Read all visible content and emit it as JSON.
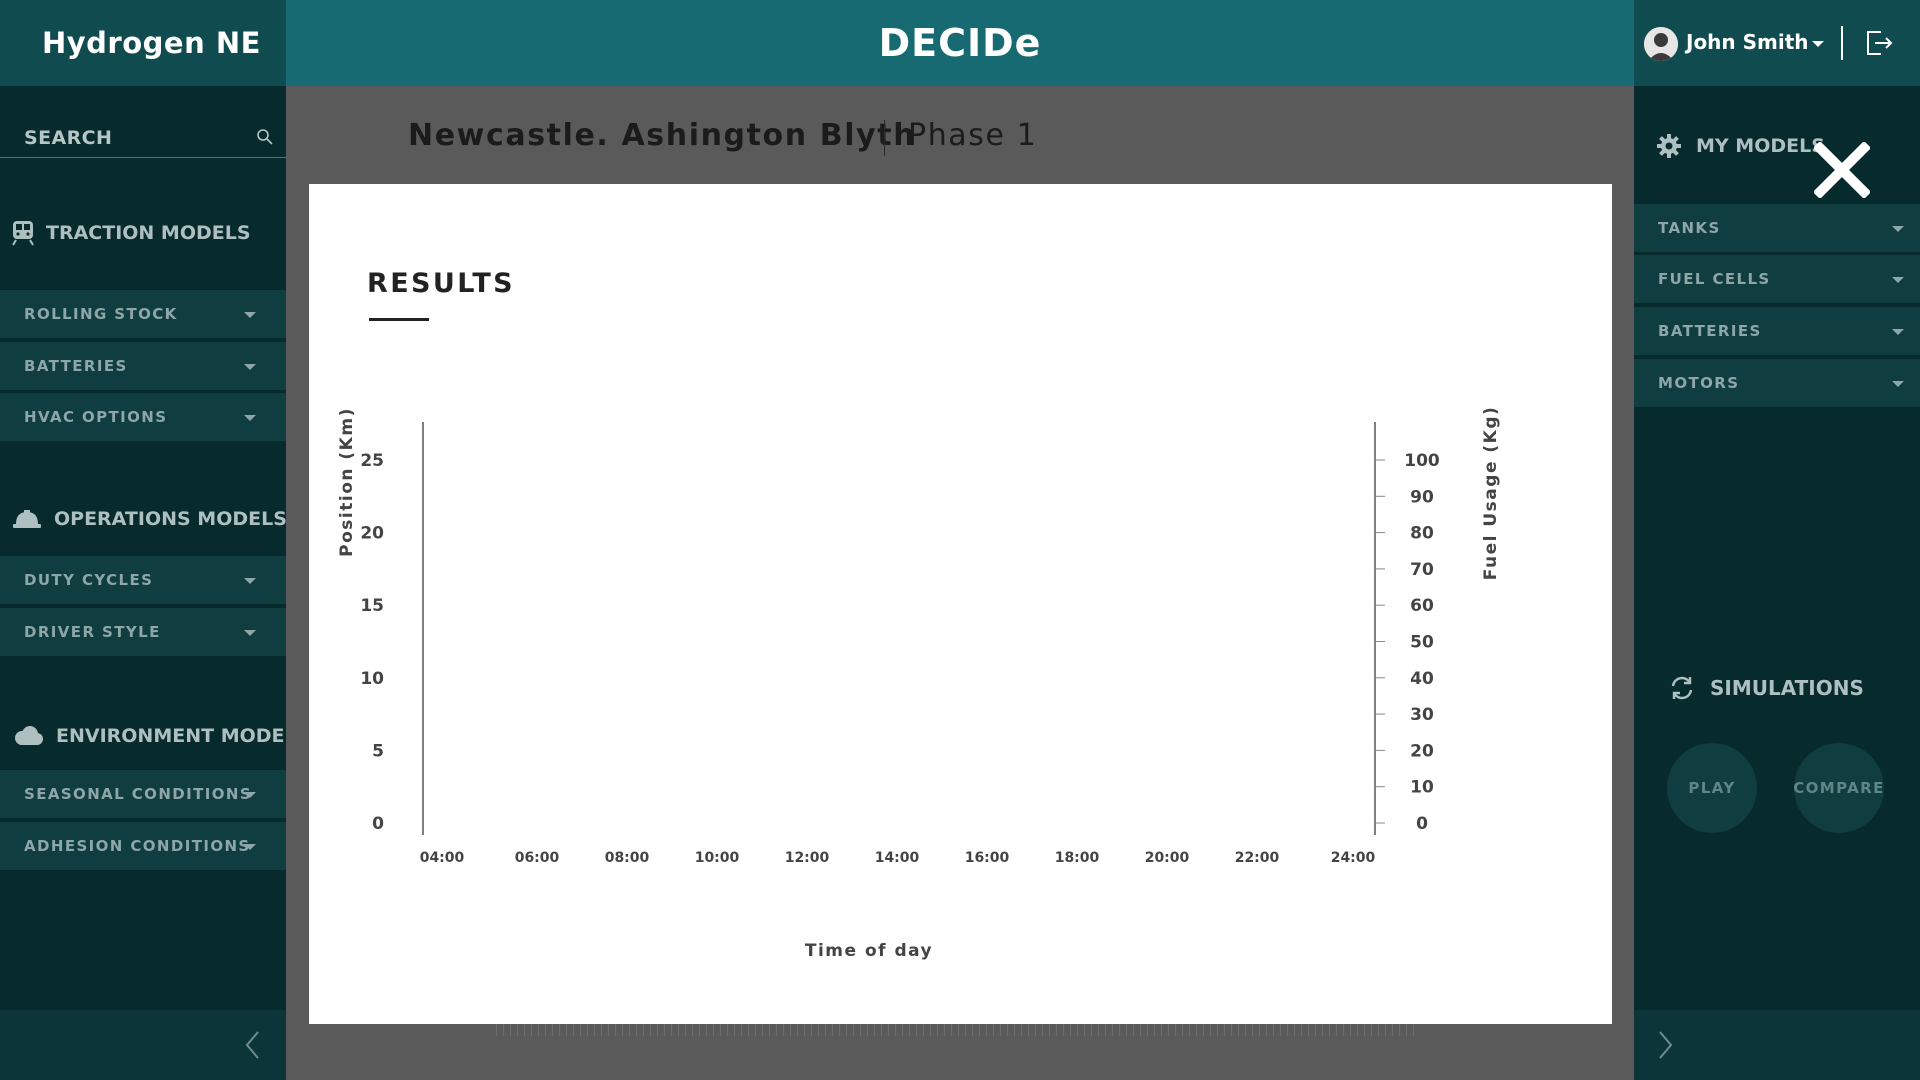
{
  "app": {
    "brand": "Hydrogen NE",
    "title": "DECIDe"
  },
  "user": {
    "name": "John Smith"
  },
  "search": {
    "label": "SEARCH"
  },
  "left_sidebar": {
    "traction": {
      "title": "TRACTION MODELS",
      "items": [
        "ROLLING STOCK",
        "BATTERIES",
        "HVAC OPTIONS"
      ]
    },
    "operations": {
      "title": "OPERATIONS MODELS",
      "items": [
        "DUTY CYCLES",
        "DRIVER STYLE"
      ]
    },
    "environment": {
      "title": "ENVIRONMENT MODELS",
      "items": [
        "SEASONAL CONDITIONS",
        "ADHESION CONDITIONS"
      ]
    }
  },
  "page": {
    "title": "Newcastle. Ashington Blyth",
    "phase": "Phase 1"
  },
  "right_sidebar": {
    "my_models": "MY MODELS",
    "items": [
      "TANKS",
      "FUEL CELLS",
      "BATTERIES",
      "MOTORS"
    ],
    "simulations": "SIMULATIONS",
    "play": "PLAY",
    "compare": "COMPARE"
  },
  "modal": {
    "title": "RESULTS"
  },
  "chart_data": {
    "type": "line",
    "title": "",
    "xlabel": "Time of day",
    "ylabel": "Position (Km)",
    "y2label": "Fuel Usage (Kg)",
    "x_ticks": [
      "04:00",
      "06:00",
      "08:00",
      "10:00",
      "12:00",
      "14:00",
      "16:00",
      "18:00",
      "20:00",
      "22:00",
      "24:00"
    ],
    "y_ticks": [
      0,
      5,
      10,
      15,
      20,
      25
    ],
    "y2_ticks": [
      0,
      10,
      20,
      30,
      40,
      50,
      60,
      70,
      80,
      90,
      100
    ],
    "ylim": [
      0,
      25
    ],
    "y2lim": [
      0,
      100
    ],
    "series": []
  },
  "colors": {
    "header": "#176a71",
    "sidebar": "#072a2d",
    "menu_item": "#0f3d40"
  }
}
